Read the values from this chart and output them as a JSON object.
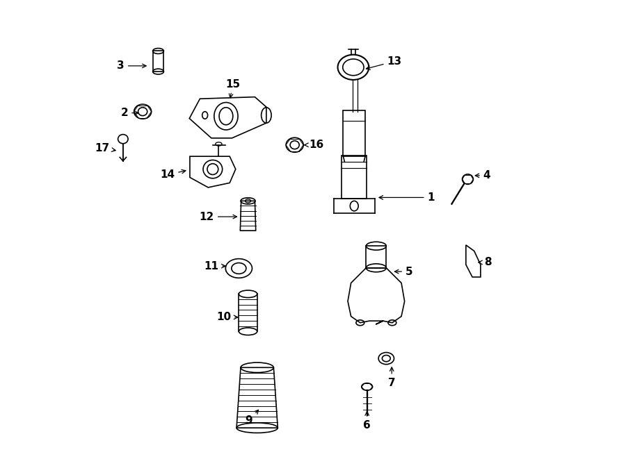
{
  "bg_color": "#ffffff",
  "lc": "#000000",
  "lw": 1.2,
  "fig_w": 9.0,
  "fig_h": 6.61,
  "dpi": 100,
  "labels": {
    "1": [
      0.758,
      0.57,
      0.638,
      0.57
    ],
    "2": [
      0.088,
      0.755,
      0.125,
      0.755
    ],
    "3": [
      0.08,
      0.858,
      0.142,
      0.858
    ],
    "4": [
      0.88,
      0.618,
      0.848,
      0.618
    ],
    "5": [
      0.71,
      0.408,
      0.672,
      0.408
    ],
    "6": [
      0.618,
      0.072,
      0.618,
      0.108
    ],
    "7": [
      0.672,
      0.165,
      0.672,
      0.205
    ],
    "8": [
      0.882,
      0.428,
      0.855,
      0.428
    ],
    "9": [
      0.36,
      0.082,
      0.385,
      0.11
    ],
    "10": [
      0.305,
      0.308,
      0.342,
      0.308
    ],
    "11": [
      0.278,
      0.42,
      0.315,
      0.42
    ],
    "12": [
      0.268,
      0.528,
      0.34,
      0.528
    ],
    "13": [
      0.678,
      0.868,
      0.61,
      0.85
    ],
    "14": [
      0.182,
      0.62,
      0.228,
      0.63
    ],
    "15": [
      0.325,
      0.818,
      0.318,
      0.782
    ],
    "16": [
      0.508,
      0.685,
      0.475,
      0.685
    ],
    "17": [
      0.04,
      0.678,
      0.075,
      0.672
    ]
  }
}
